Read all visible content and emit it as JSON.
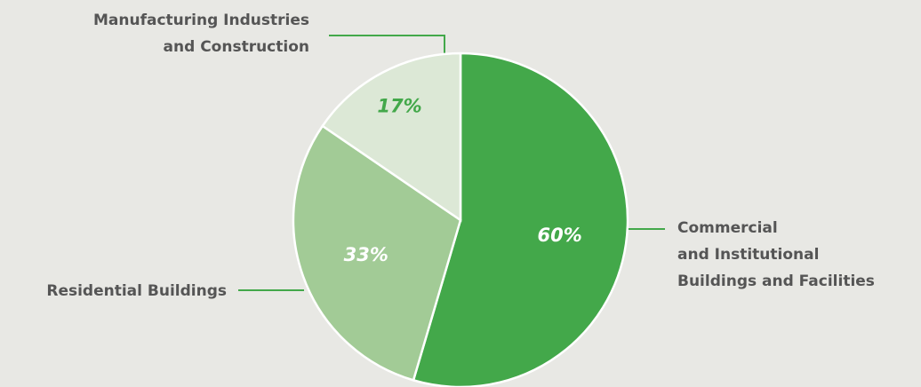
{
  "chart_data": {
    "type": "pie",
    "categories": [
      "Commercial\nand Institutional\nBuildings and Facilities",
      "Residential Buildings",
      "Manufacturing Industries\nand Construction"
    ],
    "values": [
      60,
      33,
      17
    ],
    "value_labels": [
      "60%",
      "33%",
      "17%"
    ],
    "colors": [
      "#43a84a",
      "#a2cb96",
      "#dce8d6"
    ]
  }
}
